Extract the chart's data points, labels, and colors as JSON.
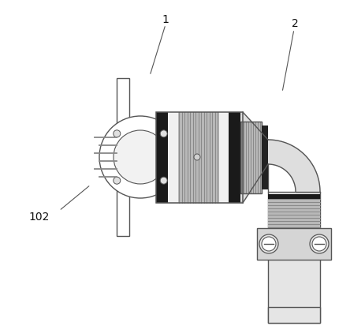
{
  "background_color": "#ffffff",
  "line_color": "#555555",
  "dark_color": "#222222",
  "label_1": "1",
  "label_2": "2",
  "label_102": "102",
  "font_size_label": 10,
  "figure_width": 4.44,
  "figure_height": 4.14,
  "dpi": 100,
  "knurl_color": "#b8b8b8",
  "knurl_line_color": "#888888",
  "body_fill": "#e8e8e8",
  "dark_band": "#1a1a1a",
  "elbow_fill": "#dedede",
  "collar_fill": "#d0d0d0"
}
